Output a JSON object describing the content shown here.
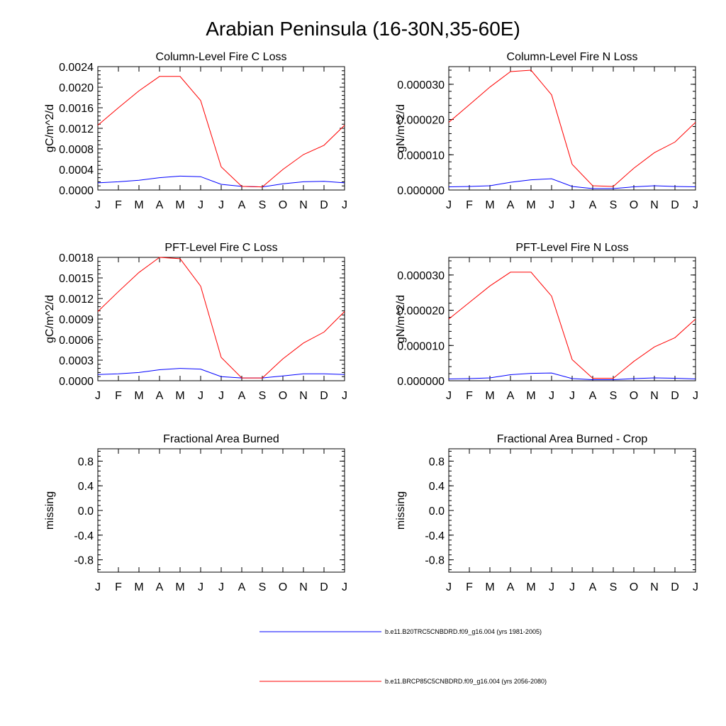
{
  "title": "Arabian Peninsula (16-30N,35-60E)",
  "months": [
    "J",
    "F",
    "M",
    "A",
    "M",
    "J",
    "J",
    "A",
    "S",
    "O",
    "N",
    "D",
    "J"
  ],
  "colors": {
    "blue": "#0000ff",
    "red": "#ff0000"
  },
  "legend": [
    {
      "label": "b.e11.B20TRC5CNBDRD.f09_g16.004 (yrs 1981-2005)",
      "color": "#0000ff"
    },
    {
      "label": "b.e11.BRCP85C5CNBDRD.f09_g16.004 (yrs 2056-2080)",
      "color": "#ff0000"
    }
  ],
  "chart_data": [
    {
      "type": "line",
      "title": "Column-Level Fire C Loss",
      "ylabel": "gC/m^2/d",
      "ylim": [
        0,
        0.0024
      ],
      "yticks": [
        0,
        0.0004,
        0.0008,
        0.0012,
        0.0016,
        0.002,
        0.0024
      ],
      "ytick_labels": [
        "0.0000",
        "0.0004",
        "0.0008",
        "0.0012",
        "0.0016",
        "0.0020",
        "0.0024"
      ],
      "x": [
        "J",
        "F",
        "M",
        "A",
        "M",
        "J",
        "J",
        "A",
        "S",
        "O",
        "N",
        "D",
        "J"
      ],
      "series": [
        {
          "name": "b.e11.B20TRC5CNBDRD.f09_g16.004 (yrs 1981-2005)",
          "color": "#0000ff",
          "values": [
            0.00014,
            0.00016,
            0.00019,
            0.00024,
            0.00027,
            0.00026,
            0.00011,
            7e-05,
            6e-05,
            0.00012,
            0.00016,
            0.00017,
            0.00014
          ]
        },
        {
          "name": "b.e11.BRCP85C5CNBDRD.f09_g16.004 (yrs 2056-2080)",
          "color": "#ff0000",
          "values": [
            0.00126,
            0.0016,
            0.00193,
            0.00221,
            0.00221,
            0.00174,
            0.00045,
            7e-05,
            6e-05,
            0.0004,
            0.00069,
            0.00087,
            0.00126
          ]
        }
      ]
    },
    {
      "type": "line",
      "title": "Column-Level Fire N Loss",
      "ylabel": "gN/m^2/d",
      "ylim": [
        0,
        3.5e-05
      ],
      "yticks": [
        0,
        1e-05,
        2e-05,
        3e-05
      ],
      "ytick_labels": [
        "0.000000",
        "0.000010",
        "0.000020",
        "0.000030"
      ],
      "x": [
        "J",
        "F",
        "M",
        "A",
        "M",
        "J",
        "J",
        "A",
        "S",
        "O",
        "N",
        "D",
        "J"
      ],
      "series": [
        {
          "name": "b.e11.B20TRC5CNBDRD.f09_g16.004 (yrs 1981-2005)",
          "color": "#0000ff",
          "values": [
            9e-07,
            1e-06,
            1.2e-06,
            2.2e-06,
            2.9e-06,
            3.2e-06,
            1e-06,
            4e-07,
            4e-07,
            9e-07,
            1.2e-06,
            1e-06,
            9e-07
          ]
        },
        {
          "name": "b.e11.BRCP85C5CNBDRD.f09_g16.004 (yrs 2056-2080)",
          "color": "#ff0000",
          "values": [
            1.92e-05,
            2.42e-05,
            2.92e-05,
            3.36e-05,
            3.4e-05,
            2.7e-05,
            7.3e-06,
            1.2e-06,
            1e-06,
            6.2e-06,
            1.06e-05,
            1.36e-05,
            1.92e-05
          ]
        }
      ]
    },
    {
      "type": "line",
      "title": "PFT-Level Fire C Loss",
      "ylabel": "gC/m^2/d",
      "ylim": [
        0,
        0.0018
      ],
      "yticks": [
        0,
        0.0003,
        0.0006,
        0.0009,
        0.0012,
        0.0015,
        0.0018
      ],
      "ytick_labels": [
        "0.0000",
        "0.0003",
        "0.0006",
        "0.0009",
        "0.0012",
        "0.0015",
        "0.0018"
      ],
      "x": [
        "J",
        "F",
        "M",
        "A",
        "M",
        "J",
        "J",
        "A",
        "S",
        "O",
        "N",
        "D",
        "J"
      ],
      "series": [
        {
          "name": "b.e11.B20TRC5CNBDRD.f09_g16.004 (yrs 1981-2005)",
          "color": "#0000ff",
          "values": [
            9e-05,
            0.0001,
            0.00012,
            0.00016,
            0.00018,
            0.00017,
            6e-05,
            4e-05,
            4e-05,
            7e-05,
            0.0001,
            0.0001,
            9e-05
          ]
        },
        {
          "name": "b.e11.BRCP85C5CNBDRD.f09_g16.004 (yrs 2056-2080)",
          "color": "#ff0000",
          "values": [
            0.00101,
            0.0013,
            0.00158,
            0.0018,
            0.00178,
            0.00138,
            0.00034,
            4e-05,
            4e-05,
            0.00032,
            0.00055,
            0.00071,
            0.00101
          ]
        }
      ]
    },
    {
      "type": "line",
      "title": "PFT-Level Fire N Loss",
      "ylabel": "gN/m^2/d",
      "ylim": [
        0,
        3.5e-05
      ],
      "yticks": [
        0,
        1e-05,
        2e-05,
        3e-05
      ],
      "ytick_labels": [
        "0.000000",
        "0.000010",
        "0.000020",
        "0.000030"
      ],
      "x": [
        "J",
        "F",
        "M",
        "A",
        "M",
        "J",
        "J",
        "A",
        "S",
        "O",
        "N",
        "D",
        "J"
      ],
      "series": [
        {
          "name": "b.e11.B20TRC5CNBDRD.f09_g16.004 (yrs 1981-2005)",
          "color": "#0000ff",
          "values": [
            5e-07,
            6e-07,
            8e-07,
            1.7e-06,
            2.1e-06,
            2.2e-06,
            6e-07,
            3e-07,
            3e-07,
            6e-07,
            8e-07,
            7e-07,
            5e-07
          ]
        },
        {
          "name": "b.e11.BRCP85C5CNBDRD.f09_g16.004 (yrs 2056-2080)",
          "color": "#ff0000",
          "values": [
            1.75e-05,
            2.22e-05,
            2.69e-05,
            3.08e-05,
            3.08e-05,
            2.4e-05,
            6e-06,
            7e-07,
            7e-07,
            5.5e-06,
            9.6e-06,
            1.22e-05,
            1.75e-05
          ]
        }
      ]
    },
    {
      "type": "line",
      "title": "Fractional Area Burned",
      "ylabel": "missing",
      "ylim": [
        -1.0,
        1.0
      ],
      "yticks": [
        -0.8,
        -0.4,
        0.0,
        0.4,
        0.8
      ],
      "ytick_labels": [
        "-0.8",
        "-0.4",
        "0.0",
        "0.4",
        "0.8"
      ],
      "x": [
        "J",
        "F",
        "M",
        "A",
        "M",
        "J",
        "J",
        "A",
        "S",
        "O",
        "N",
        "D",
        "J"
      ],
      "series": []
    },
    {
      "type": "line",
      "title": "Fractional Area Burned - Crop",
      "ylabel": "missing",
      "ylim": [
        -1.0,
        1.0
      ],
      "yticks": [
        -0.8,
        -0.4,
        0.0,
        0.4,
        0.8
      ],
      "ytick_labels": [
        "-0.8",
        "-0.4",
        "0.0",
        "0.4",
        "0.8"
      ],
      "x": [
        "J",
        "F",
        "M",
        "A",
        "M",
        "J",
        "J",
        "A",
        "S",
        "O",
        "N",
        "D",
        "J"
      ],
      "series": []
    }
  ]
}
